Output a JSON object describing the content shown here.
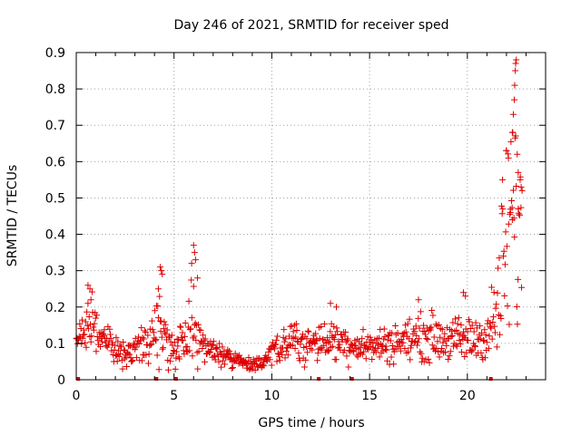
{
  "chart_data": {
    "type": "scatter",
    "title": "Day 246 of 2021, SRMTID for receiver sped",
    "xlabel": "GPS time / hours",
    "ylabel": "SRMTID / TECUs",
    "xlim": [
      0,
      24
    ],
    "ylim": [
      0,
      0.9
    ],
    "xticks": [
      0,
      5,
      10,
      15,
      20
    ],
    "yticks": [
      0,
      0.1,
      0.2,
      0.3,
      0.4,
      0.5,
      0.6,
      0.7,
      0.8,
      0.9
    ],
    "xtick_labels": [
      "0",
      "5",
      "10",
      "15",
      "20"
    ],
    "ytick_labels": [
      "0",
      "0.1",
      "0.2",
      "0.3",
      "0.4",
      "0.5",
      "0.6",
      "0.7",
      "0.8",
      "0.9"
    ],
    "grid": true,
    "marker": "+",
    "color": "#dd0000",
    "series": [
      {
        "name": "SRMTID",
        "profile": [
          [
            0.0,
            0.1,
            0.02
          ],
          [
            0.5,
            0.13,
            0.05
          ],
          [
            0.8,
            0.16,
            0.08
          ],
          [
            1.2,
            0.12,
            0.04
          ],
          [
            1.8,
            0.1,
            0.03
          ],
          [
            2.3,
            0.06,
            0.03
          ],
          [
            2.8,
            0.07,
            0.03
          ],
          [
            3.3,
            0.09,
            0.04
          ],
          [
            3.8,
            0.1,
            0.04
          ],
          [
            4.2,
            0.14,
            0.1
          ],
          [
            4.6,
            0.1,
            0.05
          ],
          [
            5.0,
            0.09,
            0.04
          ],
          [
            5.5,
            0.1,
            0.06
          ],
          [
            6.0,
            0.17,
            0.12
          ],
          [
            6.5,
            0.1,
            0.04
          ],
          [
            7.0,
            0.08,
            0.03
          ],
          [
            8.0,
            0.06,
            0.02
          ],
          [
            9.0,
            0.04,
            0.015
          ],
          [
            9.5,
            0.04,
            0.015
          ],
          [
            10.0,
            0.07,
            0.03
          ],
          [
            11.0,
            0.11,
            0.04
          ],
          [
            12.0,
            0.1,
            0.04
          ],
          [
            13.0,
            0.11,
            0.04
          ],
          [
            14.0,
            0.1,
            0.04
          ],
          [
            15.0,
            0.09,
            0.03
          ],
          [
            16.0,
            0.1,
            0.04
          ],
          [
            17.0,
            0.11,
            0.04
          ],
          [
            18.0,
            0.12,
            0.05
          ],
          [
            19.0,
            0.11,
            0.04
          ],
          [
            20.0,
            0.11,
            0.05
          ],
          [
            21.0,
            0.12,
            0.05
          ],
          [
            21.5,
            0.18,
            0.1
          ],
          [
            22.0,
            0.38,
            0.22
          ],
          [
            22.4,
            0.48,
            0.3
          ],
          [
            22.8,
            0.36,
            0.2
          ]
        ],
        "spikes": [
          [
            0.6,
            0.26
          ],
          [
            0.7,
            0.25
          ],
          [
            0.75,
            0.22
          ],
          [
            4.3,
            0.31
          ],
          [
            4.35,
            0.3
          ],
          [
            4.4,
            0.29
          ],
          [
            4.2,
            0.25
          ],
          [
            6.0,
            0.37
          ],
          [
            6.05,
            0.35
          ],
          [
            6.1,
            0.33
          ],
          [
            5.9,
            0.32
          ],
          [
            6.2,
            0.28
          ],
          [
            13.0,
            0.21
          ],
          [
            13.3,
            0.2
          ],
          [
            17.5,
            0.22
          ],
          [
            19.8,
            0.24
          ],
          [
            19.9,
            0.23
          ],
          [
            21.8,
            0.55
          ],
          [
            22.0,
            0.63
          ],
          [
            22.1,
            0.61
          ],
          [
            22.3,
            0.68
          ],
          [
            22.35,
            0.73
          ],
          [
            22.4,
            0.77
          ],
          [
            22.42,
            0.81
          ],
          [
            22.45,
            0.85
          ],
          [
            22.47,
            0.87
          ],
          [
            22.5,
            0.88
          ],
          [
            22.55,
            0.62
          ],
          [
            22.6,
            0.57
          ],
          [
            22.7,
            0.55
          ],
          [
            22.75,
            0.53
          ],
          [
            22.8,
            0.52
          ],
          [
            22.6,
            0.47
          ],
          [
            22.3,
            0.44
          ],
          [
            22.2,
            0.46
          ]
        ]
      }
    ],
    "marked_times": [
      0.1,
      4.1,
      5.1,
      12.4,
      14.1,
      21.2
    ]
  }
}
